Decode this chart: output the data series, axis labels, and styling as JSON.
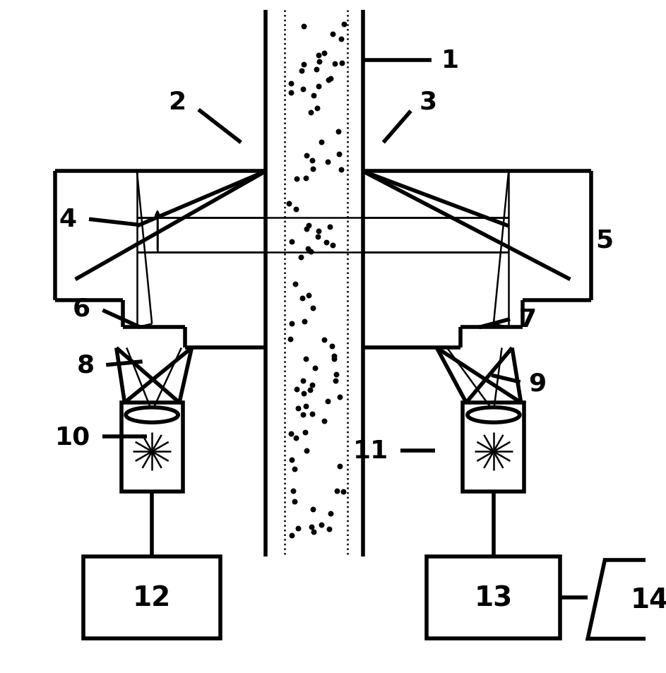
{
  "bg_color": "#ffffff",
  "line_color": "#000000",
  "lw": 4.0,
  "thin_lw": 1.8,
  "fig_width": 9.43,
  "fig_height": 9.54,
  "dpi": 100
}
